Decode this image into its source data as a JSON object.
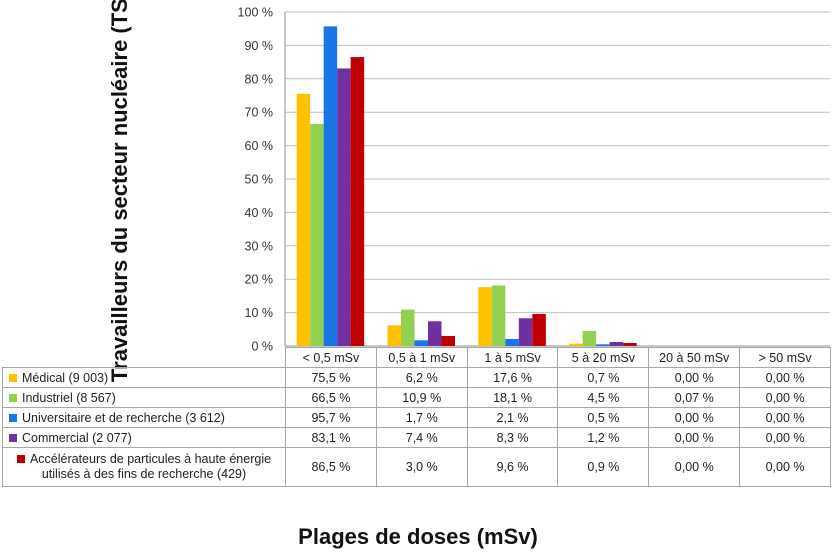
{
  "chart_data": {
    "type": "bar",
    "title": "",
    "ylabel": "Travailleurs du secteur nucléaire (TSN)",
    "xlabel": "Plages de doses (mSv)",
    "ylim": [
      0,
      100
    ],
    "yticks": [
      "0 %",
      "10 %",
      "20 %",
      "30 %",
      "40 %",
      "50 %",
      "60 %",
      "70 %",
      "80 %",
      "90 %",
      "100 %"
    ],
    "grid": true,
    "legend": "data-table",
    "categories": [
      "< 0,5 mSv",
      "0,5 à 1 mSv",
      "1 à 5 mSv",
      "5 à 20 mSv",
      "20 à 50 mSv",
      "> 50 mSv"
    ],
    "series": [
      {
        "name": "Médical (9 003)",
        "color": "#ffc000",
        "values": [
          75.5,
          6.2,
          17.6,
          0.7,
          0.0,
          0.0
        ],
        "labels": [
          "75,5 %",
          "6,2 %",
          "17,6 %",
          "0,7 %",
          "0,00 %",
          "0,00 %"
        ]
      },
      {
        "name": "Industriel (8 567)",
        "color": "#92d050",
        "values": [
          66.5,
          10.9,
          18.1,
          4.5,
          0.07,
          0.0
        ],
        "labels": [
          "66,5 %",
          "10,9 %",
          "18,1 %",
          "4,5 %",
          "0,07 %",
          "0,00 %"
        ]
      },
      {
        "name": "Universitaire et de recherche (3 612)",
        "color": "#1a75e6",
        "values": [
          95.7,
          1.7,
          2.1,
          0.5,
          0.0,
          0.0
        ],
        "labels": [
          "95,7 %",
          "1,7 %",
          "2,1 %",
          "0,5 %",
          "0,00 %",
          "0,00 %"
        ]
      },
      {
        "name": "Commercial (2 077)",
        "color": "#7030a0",
        "values": [
          83.1,
          7.4,
          8.3,
          1.2,
          0.0,
          0.0
        ],
        "labels": [
          "83,1 %",
          "7,4 %",
          "8,3 %",
          "1,2 %",
          "0,00 %",
          "0,00 %"
        ]
      },
      {
        "name": "Accélérateurs de particules à haute énergie utilisés à des fins de recherche (429)",
        "color": "#c00000",
        "values": [
          86.5,
          3.0,
          9.6,
          0.9,
          0.0,
          0.0
        ],
        "labels": [
          "86,5 %",
          "3,0 %",
          "9,6 %",
          "0,9 %",
          "0,00 %",
          "0,00 %"
        ]
      }
    ]
  }
}
